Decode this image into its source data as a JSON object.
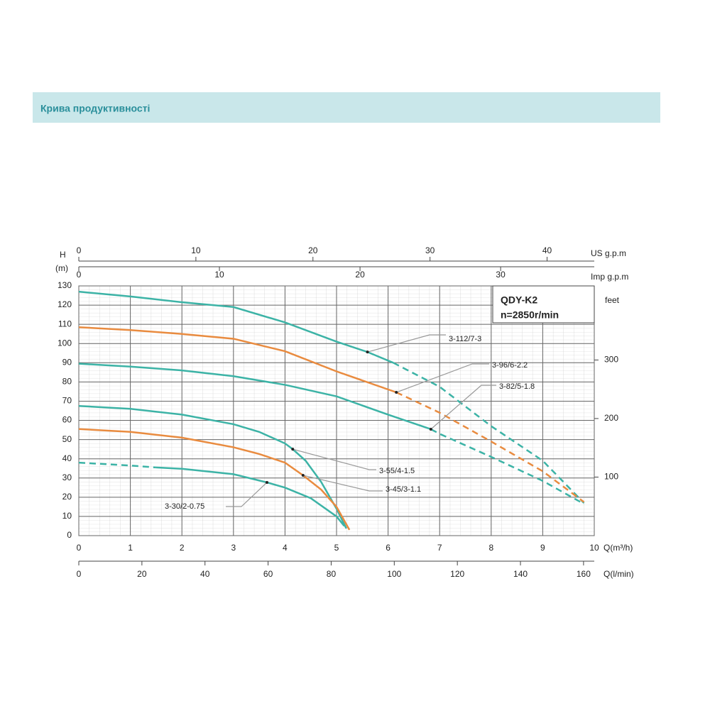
{
  "header": {
    "title": "Крива продуктивності"
  },
  "chart_data": {
    "type": "line",
    "title": "QDY-K2",
    "subtitle": "n=2850r/min",
    "y_label": [
      "H",
      "(m)"
    ],
    "xlabel": "Q(m³/h)",
    "xlim": [
      0,
      10
    ],
    "xticks": [
      0,
      1,
      2,
      3,
      4,
      5,
      6,
      7,
      8,
      9,
      10
    ],
    "ylim": [
      0,
      130
    ],
    "yticks": [
      0,
      10,
      20,
      30,
      40,
      50,
      60,
      70,
      80,
      90,
      100,
      110,
      120,
      130
    ],
    "grid": true,
    "secondary_axes": {
      "us_gpm": {
        "label": "US g.p.m",
        "lim": [
          0,
          44.03
        ],
        "ticks": [
          0,
          10,
          20,
          30,
          40
        ]
      },
      "imp_gpm": {
        "label": "Imp g.p.m",
        "lim": [
          0,
          36.66
        ],
        "ticks": [
          0,
          10,
          20,
          30
        ]
      },
      "l_min": {
        "label": "Q(l/min)",
        "lim": [
          0,
          163.4
        ],
        "ticks": [
          0,
          20,
          40,
          60,
          80,
          100,
          120,
          140,
          160
        ]
      },
      "feet": {
        "label": "feet",
        "lim": [
          0,
          426.5
        ],
        "ticks": [
          100,
          200,
          300
        ]
      }
    },
    "series": [
      {
        "name": "3-112/7-3",
        "color": "#3cb3a6",
        "segments": [
          {
            "style": "solid",
            "x": [
              0,
              1,
              2,
              3,
              4,
              5,
              5.6,
              6.1
            ],
            "values": [
              127,
              124.5,
              121.5,
              119,
              111,
              101,
              95.6,
              90
            ]
          },
          {
            "style": "dashed",
            "x": [
              6.1,
              7,
              8,
              9,
              9.8
            ],
            "values": [
              90,
              77.5,
              57,
              39,
              17
            ]
          }
        ]
      },
      {
        "name": "3-96/6-2.2",
        "color": "#e98b3f",
        "segments": [
          {
            "style": "solid",
            "x": [
              0,
              1,
              2,
              3,
              4,
              5,
              6.16
            ],
            "values": [
              108.5,
              107,
              105,
              102.5,
              96,
              85.5,
              74.6
            ]
          },
          {
            "style": "dashed",
            "x": [
              6.16,
              7,
              8,
              9,
              9.8
            ],
            "values": [
              74.6,
              64,
              49,
              33.5,
              17.5
            ]
          }
        ]
      },
      {
        "name": "3-82/5-1.8",
        "color": "#3cb3a6",
        "segments": [
          {
            "style": "solid",
            "x": [
              0,
              1,
              2,
              3,
              4,
              5,
              6,
              6.83
            ],
            "values": [
              89.5,
              88,
              86,
              83,
              78.5,
              72.5,
              63,
              55.4
            ]
          },
          {
            "style": "dashed",
            "x": [
              6.83,
              7,
              8,
              9,
              9.8
            ],
            "values": [
              55.4,
              53,
              41,
              28.5,
              16.5
            ]
          }
        ]
      },
      {
        "name": "3-55/4-1.5",
        "color": "#3cb3a6",
        "segments": [
          {
            "style": "solid",
            "x": [
              0,
              1,
              2,
              3,
              3.5,
              4,
              4.15,
              4.4,
              4.7,
              5,
              5.19
            ],
            "values": [
              67.5,
              66,
              63,
              58,
              54,
              48,
              45,
              39,
              28,
              14,
              3.7
            ]
          }
        ]
      },
      {
        "name": "3-45/3-1.1",
        "color": "#e98b3f",
        "segments": [
          {
            "style": "solid",
            "x": [
              0,
              1,
              2,
              3,
              3.5,
              4,
              4.35,
              4.7,
              5,
              5.25
            ],
            "values": [
              55.5,
              54,
              51,
              46,
              42.5,
              38,
              31.4,
              24,
              15,
              3
            ]
          }
        ]
      },
      {
        "name": "3-30/2-0.75",
        "color": "#3cb3a6",
        "segments": [
          {
            "style": "dashed",
            "x": [
              0,
              1,
              1.5
            ],
            "values": [
              38,
              36.5,
              35.5
            ]
          },
          {
            "style": "solid",
            "x": [
              1.5,
              2,
              3,
              3.65,
              4,
              4.5,
              5,
              5.15
            ],
            "values": [
              35.5,
              34.8,
              32,
              27.7,
              25,
              19.5,
              10,
              5
            ]
          }
        ]
      }
    ]
  }
}
